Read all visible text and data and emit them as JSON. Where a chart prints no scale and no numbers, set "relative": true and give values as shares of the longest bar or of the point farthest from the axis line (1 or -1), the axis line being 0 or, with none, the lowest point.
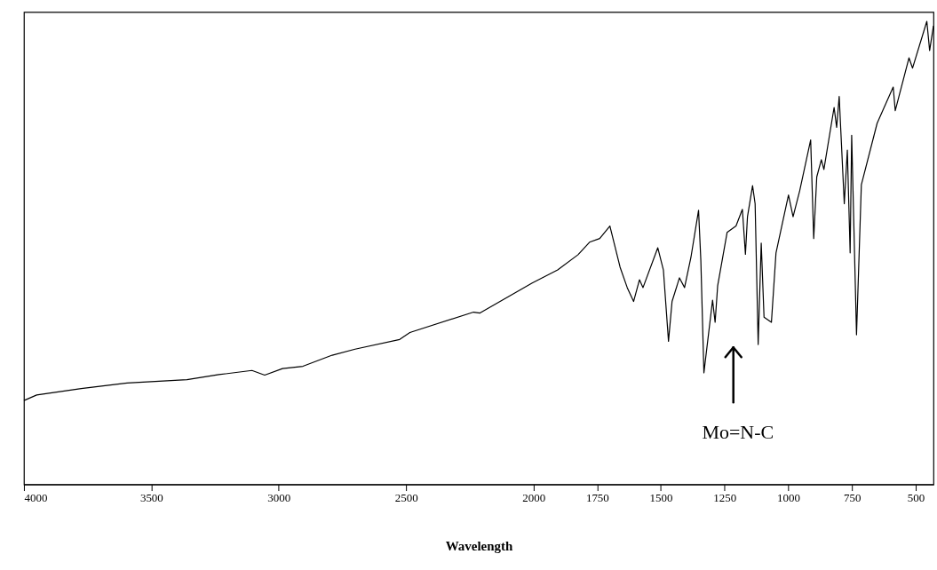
{
  "chart_data": {
    "type": "line",
    "relative": true,
    "xlabel": "Wavelength",
    "xlim": [
      4000,
      430
    ],
    "xticks": [
      4000,
      3500,
      3000,
      2500,
      2000,
      1750,
      1500,
      1250,
      1000,
      750,
      500
    ],
    "grid": false,
    "marker": "none",
    "line_style": "solid",
    "tick_labels": "x",
    "annotations": [
      "Mo=N-C"
    ],
    "series": [
      {
        "color": "#000000",
        "x": [
          4000,
          3950,
          3775,
          3595,
          3360,
          3235,
          3105,
          3055,
          2985,
          2905,
          2790,
          2700,
          2525,
          2485,
          2235,
          2210,
          2005,
          1905,
          1825,
          1780,
          1740,
          1700,
          1660,
          1632,
          1607,
          1584,
          1570,
          1512,
          1490,
          1470,
          1456,
          1427,
          1407,
          1382,
          1352,
          1343,
          1331,
          1297,
          1287,
          1277,
          1240,
          1205,
          1180,
          1168,
          1160,
          1140,
          1130,
          1118,
          1106,
          1095,
          1066,
          1048,
          999,
          981,
          955,
          912,
          900,
          888,
          870,
          860,
          820,
          810,
          800,
          780,
          768,
          757,
          751,
          732,
          713,
          651,
          588,
          580,
          526,
          512,
          456,
          445,
          430
        ],
        "values": [
          0.181,
          0.193,
          0.207,
          0.219,
          0.226,
          0.237,
          0.246,
          0.236,
          0.25,
          0.255,
          0.279,
          0.292,
          0.313,
          0.328,
          0.372,
          0.37,
          0.435,
          0.463,
          0.496,
          0.523,
          0.531,
          0.558,
          0.469,
          0.425,
          0.395,
          0.442,
          0.425,
          0.511,
          0.463,
          0.309,
          0.395,
          0.446,
          0.425,
          0.49,
          0.592,
          0.483,
          0.241,
          0.398,
          0.35,
          0.429,
          0.544,
          0.558,
          0.594,
          0.497,
          0.578,
          0.645,
          0.606,
          0.302,
          0.521,
          0.361,
          0.35,
          0.5,
          0.625,
          0.578,
          0.634,
          0.744,
          0.531,
          0.664,
          0.701,
          0.68,
          0.814,
          0.771,
          0.838,
          0.606,
          0.722,
          0.5,
          0.754,
          0.323,
          0.647,
          0.78,
          0.858,
          0.807,
          0.921,
          0.899,
          1.0,
          0.937,
          0.99
        ]
      }
    ]
  }
}
